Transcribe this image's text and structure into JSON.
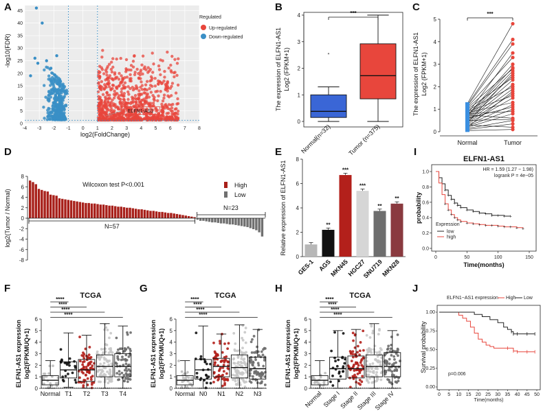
{
  "figure": {
    "panels": {
      "A": "A",
      "B": "B",
      "C": "C",
      "D": "D",
      "E": "E",
      "F": "F",
      "G": "G",
      "H": "H",
      "I": "I",
      "J": "J"
    }
  },
  "chart_data": [
    {
      "id": "A",
      "type": "scatter",
      "title": "",
      "xlabel": "log2(FoldChange)",
      "ylabel": "-log10(FDR)",
      "xlim": [
        -4,
        8
      ],
      "ylim": [
        0,
        47
      ],
      "x_ticks": [
        "-4",
        "-3",
        "-2",
        "-1",
        "0",
        "1",
        "2",
        "3",
        "4",
        "5",
        "6",
        "7",
        "8"
      ],
      "y_ticks": [
        "0",
        "5",
        "10",
        "15",
        "20",
        "25",
        "30",
        "35",
        "40",
        "45"
      ],
      "legend_title": "Regulated",
      "legend": [
        {
          "name": "Up-regulated",
          "color": "#e8463c"
        },
        {
          "name": "Down-regulated",
          "color": "#3a8fc6"
        }
      ],
      "annotation": "ELFN1-AS1",
      "annotation_point": [
        1.6,
        3.1
      ],
      "thresholds": {
        "x": [
          -1,
          1
        ],
        "y": 1.3
      }
    },
    {
      "id": "B",
      "type": "box",
      "ylabel_line1": "The expression of ELFN1-AS1",
      "ylabel_line2": "Log2 (FPKM+1)",
      "ylim": [
        0,
        4
      ],
      "y_ticks": [
        "0",
        "1",
        "2",
        "3",
        "4"
      ],
      "categories": [
        "Normal(n=32)",
        "Tumor (n=375)"
      ],
      "boxes": [
        {
          "name": "Normal(n=32)",
          "color": "#3a66d6",
          "min": 0.0,
          "q1": 0.15,
          "median": 0.38,
          "q3": 1.0,
          "max": 1.3,
          "outliers": [
            2.55
          ]
        },
        {
          "name": "Tumor (n=375)",
          "color": "#e8463c",
          "min": 0.0,
          "q1": 0.85,
          "median": 1.72,
          "q3": 2.92,
          "max": 4.0,
          "outliers": []
        }
      ],
      "significance": "***"
    },
    {
      "id": "C",
      "type": "paired",
      "ylabel_line1": "The expression of ELFN1-AS1",
      "ylabel_line2": "Log2 (FPKM+1)",
      "ylim": [
        0,
        5
      ],
      "y_ticks": [
        "0",
        "1",
        "2",
        "3",
        "4",
        "5"
      ],
      "categories": [
        "Normal",
        "Tumor"
      ],
      "normal": [
        0.05,
        0.1,
        0.15,
        0.2,
        0.25,
        0.3,
        0.35,
        0.4,
        0.45,
        0.5,
        0.55,
        0.6,
        0.65,
        0.7,
        0.72,
        0.75,
        0.8,
        0.85,
        0.9,
        0.95,
        1.0,
        1.05,
        1.1,
        1.15,
        1.2,
        1.25,
        0.3,
        0.5,
        0.6,
        0.2,
        0.4,
        0.8
      ],
      "tumor": [
        0.1,
        0.35,
        0.5,
        0.8,
        1.0,
        1.2,
        1.5,
        1.7,
        1.9,
        2.1,
        2.3,
        2.5,
        2.7,
        2.85,
        3.0,
        0.6,
        0.9,
        1.3,
        1.6,
        2.0,
        2.4,
        2.8,
        3.3,
        3.9,
        4.1,
        4.8,
        0.2,
        0.55,
        1.1,
        1.8,
        2.6,
        3.5
      ],
      "significance": "***"
    },
    {
      "id": "D",
      "type": "bar",
      "ylabel": "log2(Tumor / Normal)",
      "ylim": [
        -8,
        8
      ],
      "y_ticks": [
        "-8",
        "-6",
        "-4",
        "-2",
        "0",
        "2",
        "4",
        "6",
        "8"
      ],
      "note": "Wilcoxon test  P<0.001",
      "legend": [
        {
          "name": "High",
          "color": "#a8201a"
        },
        {
          "name": "Low",
          "color": "#707070"
        }
      ],
      "high_label": "N=57",
      "low_label": "N=23",
      "high_values": [
        7.2,
        6.9,
        6.5,
        5.6,
        5.4,
        5.2,
        5.1,
        4.5,
        4.4,
        4.3,
        3.8,
        3.7,
        3.6,
        3.5,
        3.4,
        3.3,
        3.2,
        3.1,
        3.0,
        2.9,
        2.9,
        2.8,
        2.8,
        2.7,
        2.6,
        2.6,
        2.5,
        2.4,
        2.4,
        2.3,
        2.2,
        2.2,
        2.1,
        2.0,
        2.0,
        1.9,
        1.8,
        1.7,
        1.7,
        1.6,
        1.5,
        1.4,
        1.4,
        1.3,
        1.2,
        1.2,
        1.1,
        1.0,
        1.0,
        0.9,
        0.8,
        0.7,
        0.6,
        0.5,
        0.4,
        0.3,
        0.2
      ],
      "low_values": [
        -0.3,
        -0.5,
        -0.5,
        -0.6,
        -0.7,
        -0.8,
        -0.8,
        -0.9,
        -1.0,
        -1.0,
        -1.1,
        -1.2,
        -1.2,
        -1.3,
        -1.4,
        -1.5,
        -1.6,
        -1.7,
        -1.9,
        -2.1,
        -2.3,
        -2.7,
        -3.5
      ]
    },
    {
      "id": "E",
      "type": "bar",
      "ylabel": "Relative expression of ELFN1-AS1",
      "ylim": [
        0,
        8
      ],
      "y_ticks": [
        "0",
        "2",
        "4",
        "6",
        "8"
      ],
      "categories": [
        "GES-1",
        "AGS",
        "MKN45",
        "HGC27",
        "SNU719",
        "MKN28"
      ],
      "values": [
        1.0,
        2.2,
        6.7,
        5.4,
        3.75,
        4.35
      ],
      "colors": [
        "#b7b7b7",
        "#111111",
        "#b3201b",
        "#d6d6d6",
        "#6e6e6e",
        "#8a3a3f"
      ],
      "significance": [
        "",
        "**",
        "***",
        "***",
        "**",
        "**"
      ]
    },
    {
      "id": "F",
      "type": "box",
      "title": "TCGA",
      "ylabel_line1": "ELFN1-AS1 expression",
      "ylabel_line2": "log2(FPKMUQ+1)",
      "ylim": [
        0,
        6
      ],
      "y_ticks": [
        "0",
        "1",
        "2",
        "3",
        "4",
        "5",
        "6"
      ],
      "categories": [
        "Normal",
        "T1",
        "T2",
        "T3",
        "T4"
      ],
      "boxes": [
        {
          "name": "Normal",
          "color": "#bcbcbc",
          "min": 0.0,
          "q1": 0.3,
          "median": 0.7,
          "q3": 1.1,
          "max": 2.4
        },
        {
          "name": "T1",
          "color": "#111111",
          "min": 0.1,
          "q1": 0.9,
          "median": 1.6,
          "q3": 2.3,
          "max": 4.8
        },
        {
          "name": "T2",
          "color": "#b3201b",
          "min": 0.0,
          "q1": 0.6,
          "median": 1.6,
          "q3": 2.5,
          "max": 4.6
        },
        {
          "name": "T3",
          "color": "#c8c8c8",
          "min": 0.0,
          "q1": 1.0,
          "median": 1.9,
          "q3": 2.9,
          "max": 5.6
        },
        {
          "name": "T4",
          "color": "#6c6c6c",
          "min": 0.0,
          "q1": 1.0,
          "median": 1.9,
          "q3": 3.0,
          "max": 5.4
        }
      ],
      "significance": [
        "****",
        "****",
        "****",
        "****"
      ]
    },
    {
      "id": "G",
      "type": "box",
      "title": "TCGA",
      "ylabel_line1": "ELFN1-AS1 expression",
      "ylabel_line2": "log2(FPKMUQ+1)",
      "ylim": [
        0,
        6
      ],
      "y_ticks": [
        "0",
        "1",
        "2",
        "3",
        "4",
        "5",
        "6"
      ],
      "categories": [
        "Normal",
        "N0",
        "N1",
        "N2",
        "N3"
      ],
      "boxes": [
        {
          "name": "Normal",
          "color": "#bcbcbc",
          "min": 0.0,
          "q1": 0.3,
          "median": 0.7,
          "q3": 1.1,
          "max": 2.4
        },
        {
          "name": "N0",
          "color": "#111111",
          "min": 0.0,
          "q1": 0.8,
          "median": 1.6,
          "q3": 2.5,
          "max": 5.4
        },
        {
          "name": "N1",
          "color": "#b3201b",
          "min": 0.0,
          "q1": 1.0,
          "median": 1.9,
          "q3": 2.6,
          "max": 4.7
        },
        {
          "name": "N2",
          "color": "#c8c8c8",
          "min": 0.0,
          "q1": 0.9,
          "median": 1.8,
          "q3": 2.9,
          "max": 5.5
        },
        {
          "name": "N3",
          "color": "#6c6c6c",
          "min": 0.0,
          "q1": 0.8,
          "median": 1.7,
          "q3": 2.7,
          "max": 5.1
        }
      ],
      "significance": [
        "****",
        "****",
        "****",
        "****"
      ]
    },
    {
      "id": "H",
      "type": "box",
      "title": "TCGA",
      "ylabel_line1": "ELFN1-AS1 expression",
      "ylabel_line2": "log2(FPKMUQ+1)",
      "ylim": [
        0,
        6
      ],
      "y_ticks": [
        "0",
        "1",
        "2",
        "3",
        "4",
        "5",
        "6"
      ],
      "categories": [
        "Normal",
        "Stage I",
        "Stage II",
        "Stage III",
        "Stage IV"
      ],
      "boxes": [
        {
          "name": "Normal",
          "color": "#bcbcbc",
          "min": 0.0,
          "q1": 0.3,
          "median": 0.7,
          "q3": 1.1,
          "max": 2.4
        },
        {
          "name": "Stage I",
          "color": "#111111",
          "min": 0.0,
          "q1": 0.8,
          "median": 1.7,
          "q3": 2.7,
          "max": 5.0
        },
        {
          "name": "Stage II",
          "color": "#b3201b",
          "min": 0.0,
          "q1": 0.9,
          "median": 1.7,
          "q3": 2.8,
          "max": 5.1
        },
        {
          "name": "Stage III",
          "color": "#c8c8c8",
          "min": 0.0,
          "q1": 1.0,
          "median": 1.9,
          "q3": 2.9,
          "max": 5.6
        },
        {
          "name": "Stage IV",
          "color": "#6c6c6c",
          "min": 0.0,
          "q1": 1.0,
          "median": 1.9,
          "q3": 3.1,
          "max": 5.0
        }
      ],
      "significance": [
        "****",
        "****",
        "****",
        "****"
      ]
    },
    {
      "id": "I",
      "type": "line",
      "title": "ELFN1-AS1",
      "xlabel": "Time(months)",
      "ylabel": "probability",
      "xlim": [
        0,
        150
      ],
      "ylim": [
        0,
        1
      ],
      "x_ticks": [
        "0",
        "50",
        "100",
        "150"
      ],
      "y_ticks": [
        "0.0",
        "0.2",
        "0.4",
        "0.6",
        "0.8",
        "1.0"
      ],
      "stats_line1": "HR = 1.59 (1.27 − 1.98)",
      "stats_line2": "logrank P = 4e−05",
      "legend_title": "Expression",
      "series": [
        {
          "name": "low",
          "color": "#222222",
          "x": [
            0,
            5,
            10,
            15,
            20,
            25,
            30,
            35,
            40,
            50,
            60,
            70,
            80,
            90,
            100,
            110,
            120
          ],
          "values": [
            1.0,
            0.92,
            0.84,
            0.76,
            0.69,
            0.64,
            0.59,
            0.56,
            0.53,
            0.5,
            0.48,
            0.46,
            0.45,
            0.43,
            0.43,
            0.42,
            0.42
          ]
        },
        {
          "name": "high",
          "color": "#e8463c",
          "x": [
            0,
            5,
            10,
            15,
            20,
            25,
            30,
            35,
            40,
            50,
            60,
            70,
            80,
            90,
            100,
            110,
            120,
            130,
            140
          ],
          "values": [
            1.0,
            0.85,
            0.7,
            0.58,
            0.5,
            0.44,
            0.4,
            0.37,
            0.35,
            0.33,
            0.32,
            0.31,
            0.3,
            0.3,
            0.29,
            0.28,
            0.28,
            0.27,
            0.26
          ]
        }
      ]
    },
    {
      "id": "J",
      "type": "line",
      "xlabel": "Time(months)",
      "ylabel": "Survival probability",
      "xlim": [
        0,
        50
      ],
      "ylim": [
        0,
        1
      ],
      "x_ticks": [
        "0",
        "5",
        "10",
        "15",
        "20",
        "25",
        "30",
        "35",
        "40",
        "45",
        "50"
      ],
      "y_ticks": [
        "0.00",
        "0.25",
        "0.50",
        "0.75",
        "1.00"
      ],
      "legend_title": "ELFN1−AS1 expression",
      "pvalue": "p=0.006",
      "series": [
        {
          "name": "High",
          "color": "#e8463c",
          "x": [
            0,
            8,
            10,
            12,
            14,
            16,
            18,
            20,
            22,
            24,
            26,
            28,
            30,
            35,
            38,
            40,
            45,
            49
          ],
          "values": [
            1.0,
            1.0,
            0.96,
            0.92,
            0.88,
            0.8,
            0.72,
            0.64,
            0.6,
            0.56,
            0.54,
            0.52,
            0.52,
            0.52,
            0.48,
            0.47,
            0.47,
            0.47
          ]
        },
        {
          "name": "Low",
          "color": "#222222",
          "x": [
            0,
            12,
            18,
            22,
            26,
            30,
            33,
            35,
            37,
            38,
            40,
            45,
            49
          ],
          "values": [
            1.0,
            1.0,
            0.97,
            0.94,
            0.9,
            0.86,
            0.8,
            0.77,
            0.74,
            0.71,
            0.71,
            0.71,
            0.71
          ]
        }
      ]
    }
  ]
}
